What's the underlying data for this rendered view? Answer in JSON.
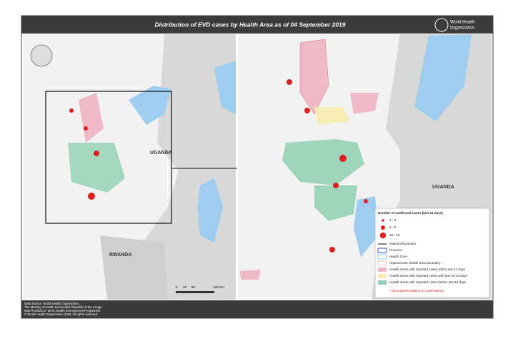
{
  "header": {
    "title": "Distribution of EVD cases by Health Area as of 04 September 2019",
    "org": [
      "World Health",
      "Organization"
    ]
  },
  "left_map": {
    "labels": [
      "UGANDA",
      "RWANDA"
    ]
  },
  "right_map": {
    "labels": [
      "UGANDA"
    ]
  },
  "scale": {
    "labels": [
      "0",
      "30",
      "60",
      "120",
      "Km"
    ]
  },
  "legend": {
    "title": "Number of confirmed cases (last 21 days)",
    "case_classes": [
      "1 - 3",
      "4 - 9",
      "10 - 16"
    ],
    "items": [
      "National boundary",
      "Province",
      "Health Zone",
      "Approximate Health area boundary *",
      "Health areas with reported cases within last 21 days",
      "Health areas with reported cases with last 22-42 days",
      "Health areas with reported cases before last 42 days"
    ],
    "note": "* (boundaries subject to confirmation)"
  },
  "footer": {
    "lines": [
      "Data Source: World Health Organization,",
      "The Ministry of Health Democratic Republic of the Congo",
      "Map Production: WHO Health Emergencies Programme",
      "© World Health Organization 2019. All rights reserved."
    ]
  }
}
